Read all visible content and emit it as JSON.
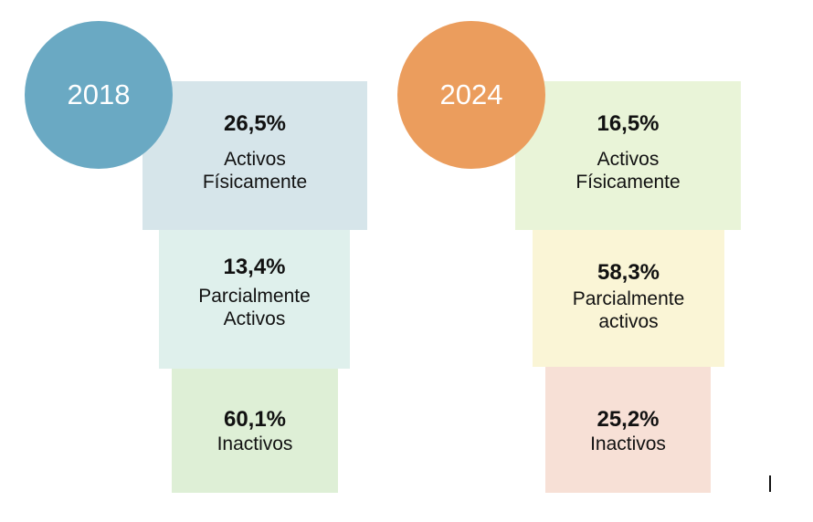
{
  "panels": [
    {
      "year": "2018",
      "circle_color": "#6aa9c3",
      "levels": [
        {
          "percent": "26,5%",
          "line1": "Activos",
          "line2": "Físicamente",
          "color": "#d6e5ea"
        },
        {
          "percent": "13,4%",
          "line1": "Parcialmente",
          "line2": "Activos",
          "color": "#dff0ec"
        },
        {
          "percent": "60,1%",
          "line1": "Inactivos",
          "line2": "",
          "color": "#deefd6"
        }
      ]
    },
    {
      "year": "2024",
      "circle_color": "#eb9d5d",
      "levels": [
        {
          "percent": "16,5%",
          "line1": "Activos",
          "line2": "Físicamente",
          "color": "#e9f4d8"
        },
        {
          "percent": "58,3%",
          "line1": "Parcialmente",
          "line2": "activos",
          "color": "#faf5d6"
        },
        {
          "percent": "25,2%",
          "line1": "Inactivos",
          "line2": "",
          "color": "#f7e0d6"
        }
      ]
    }
  ]
}
